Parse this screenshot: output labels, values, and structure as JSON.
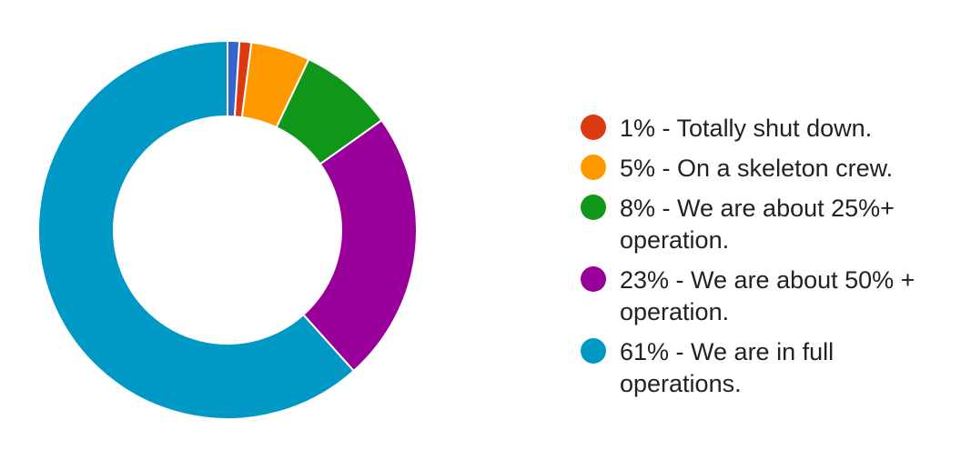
{
  "chart_data": {
    "type": "pie",
    "donut": true,
    "title": "",
    "legend_position": "right",
    "slices": [
      {
        "label": "",
        "value": 1,
        "color": "#3366cc"
      },
      {
        "label": "1% - Totally shut down.",
        "value": 1,
        "color": "#dc3912"
      },
      {
        "label": "5% - On a skeleton crew.",
        "value": 5,
        "color": "#ff9900"
      },
      {
        "label": "8% - We are about 25%+ operation.",
        "value": 8,
        "color": "#109618"
      },
      {
        "label": "23% - We are about 50% + operation.",
        "value": 23,
        "color": "#990099"
      },
      {
        "label": "61% - We are in full operations.",
        "value": 61,
        "color": "#0099c6"
      }
    ]
  },
  "legend": {
    "items": [
      {
        "text": "1% - Totally shut down.",
        "color": "#dc3912"
      },
      {
        "text": "5% - On a skeleton crew.",
        "color": "#ff9900"
      },
      {
        "text": "8% - We are about 25%+ operation.",
        "color": "#109618"
      },
      {
        "text": "23% - We are about 50% + operation.",
        "color": "#990099"
      },
      {
        "text": "61% - We are in full operations.",
        "color": "#0099c6"
      }
    ]
  }
}
